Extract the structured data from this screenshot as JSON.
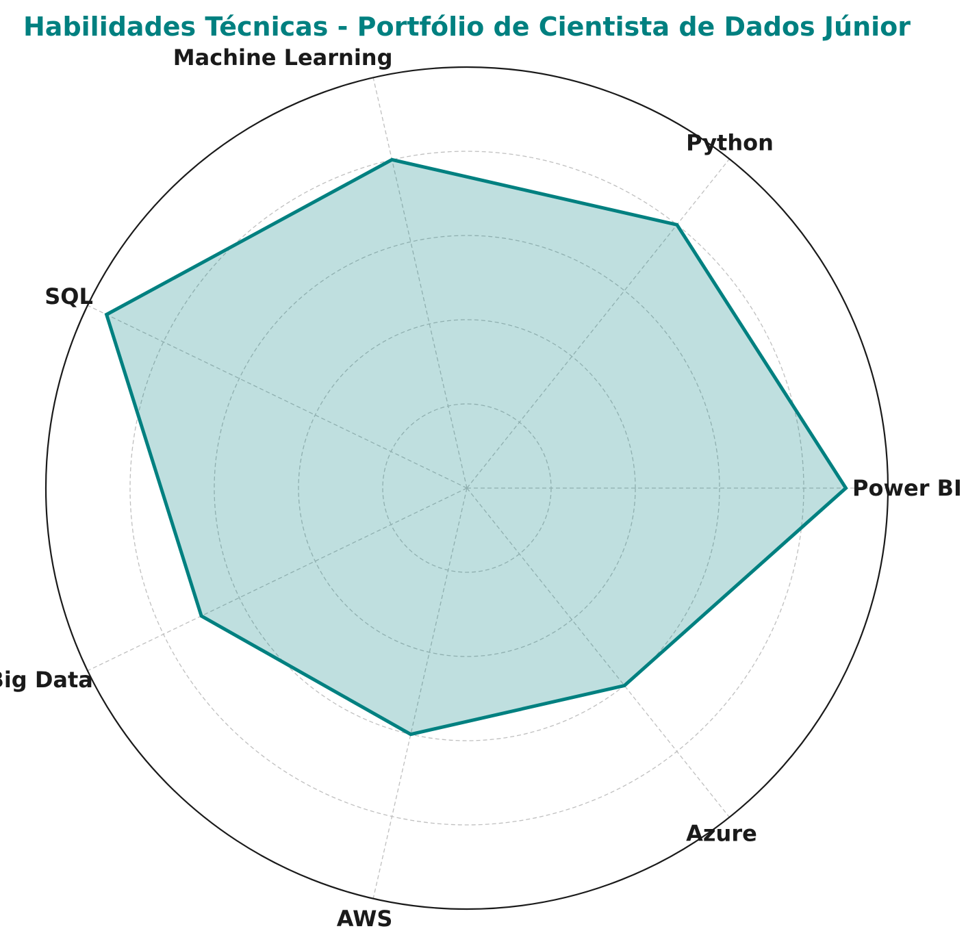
{
  "chart_data": {
    "type": "radar",
    "title": "Habilidades Técnicas - Portfólio de Cientista de Dados Júnior",
    "categories": [
      "Power BI",
      "Python",
      "Machine Learning",
      "SQL",
      "Big Data",
      "AWS",
      "Azure"
    ],
    "series": [
      {
        "values": [
          9.0,
          8.0,
          8.0,
          9.5,
          7.0,
          6.0,
          6.0
        ]
      }
    ],
    "rlim": [
      0,
      10
    ],
    "rgrid": [
      2,
      4,
      6,
      8
    ],
    "radial_tick_labels_shown": false,
    "start_angle_deg": 0,
    "direction": "counterclockwise",
    "grid": true,
    "colors": {
      "title": "#008080",
      "line": "#008080",
      "fill": "#008080",
      "fill_opacity": 0.25,
      "grid": "#bfbfbf",
      "outer_ring": "#1a1a1a",
      "labels": "#1a1a1a"
    }
  }
}
